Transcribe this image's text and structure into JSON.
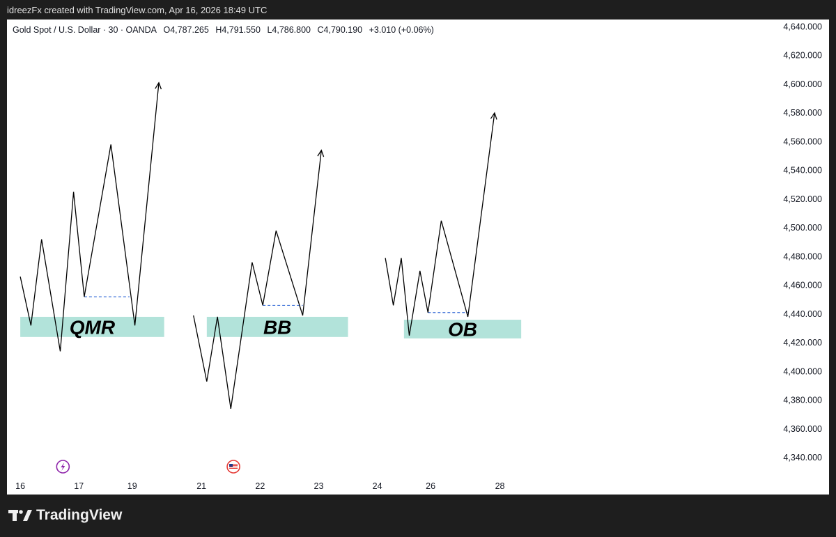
{
  "header": {
    "attribution": "idreezFx created with TradingView.com, Apr 16, 2026 18:49 UTC"
  },
  "legend": {
    "symbol": "Gold Spot / U.S. Dollar · 30 · OANDA",
    "open": "O4,787.265",
    "high": "H4,791.550",
    "low": "L4,786.800",
    "close": "C4,790.190",
    "change": "+3.010 (+0.06%)"
  },
  "footer": {
    "brand": "TradingView"
  },
  "colors": {
    "zone": "#b2e3da",
    "line": "#000000",
    "dashed": "#3a6fd8",
    "background": "#ffffff",
    "frame": "#1e1e1e"
  },
  "chart_data": {
    "type": "line",
    "y_axis": {
      "range": [
        4325,
        4645
      ],
      "ticks": [
        4640,
        4620,
        4600,
        4580,
        4560,
        4540,
        4520,
        4500,
        4480,
        4460,
        4440,
        4420,
        4400,
        4380,
        4360,
        4340
      ],
      "tick_labels": [
        "4,640.000",
        "4,620.000",
        "4,600.000",
        "4,580.000",
        "4,560.000",
        "4,540.000",
        "4,520.000",
        "4,500.000",
        "4,480.000",
        "4,460.000",
        "4,440.000",
        "4,420.000",
        "4,400.000",
        "4,380.000",
        "4,360.000",
        "4,340.000"
      ]
    },
    "x_axis": {
      "range": [
        15.35,
        29.6
      ],
      "ticks": [
        16,
        17,
        19,
        21,
        22,
        23,
        24,
        26,
        28
      ],
      "tick_labels": [
        "16",
        "17",
        "19",
        "21",
        "22",
        "23",
        "24",
        "26",
        "28"
      ],
      "tick_positions": [
        15.6,
        16.7,
        17.7,
        19.0,
        20.1,
        21.2,
        22.3,
        23.3,
        24.6
      ]
    },
    "event_markers": [
      {
        "x": 16.4,
        "icon": "lightning-icon",
        "color": "#8e24aa"
      },
      {
        "x": 19.6,
        "icon": "us-flag-icon",
        "color": "#e53935"
      }
    ],
    "patterns": [
      {
        "zone_label": "QMR",
        "zone": {
          "x_start": 15.6,
          "x_end": 18.3,
          "y_low": 4424,
          "y_high": 4438
        },
        "path": [
          [
            15.6,
            4466
          ],
          [
            15.8,
            4432
          ],
          [
            16.0,
            4492
          ],
          [
            16.35,
            4414
          ],
          [
            16.6,
            4525
          ],
          [
            16.8,
            4452
          ],
          [
            17.3,
            4558
          ],
          [
            17.75,
            4432
          ],
          [
            18.2,
            4601
          ]
        ],
        "level": {
          "x_start": 16.8,
          "x_end": 17.65,
          "y": 4452
        }
      },
      {
        "zone_label": "BB",
        "zone": {
          "x_start": 19.1,
          "x_end": 21.75,
          "y_low": 4424,
          "y_high": 4438
        },
        "path": [
          [
            18.85,
            4439
          ],
          [
            19.1,
            4393
          ],
          [
            19.3,
            4438
          ],
          [
            19.55,
            4374
          ],
          [
            19.95,
            4476
          ],
          [
            20.15,
            4446
          ],
          [
            20.4,
            4498
          ],
          [
            20.9,
            4439
          ],
          [
            21.25,
            4554
          ]
        ],
        "level": {
          "x_start": 20.15,
          "x_end": 20.9,
          "y": 4446
        }
      },
      {
        "zone_label": "OB",
        "zone": {
          "x_start": 22.8,
          "x_end": 25.0,
          "y_low": 4423,
          "y_high": 4436
        },
        "path": [
          [
            22.45,
            4479
          ],
          [
            22.6,
            4446
          ],
          [
            22.75,
            4479
          ],
          [
            22.9,
            4425
          ],
          [
            23.1,
            4470
          ],
          [
            23.25,
            4441
          ],
          [
            23.5,
            4505
          ],
          [
            24.0,
            4438
          ],
          [
            24.5,
            4580
          ]
        ],
        "level": {
          "x_start": 23.25,
          "x_end": 24.0,
          "y": 4441
        }
      }
    ]
  }
}
